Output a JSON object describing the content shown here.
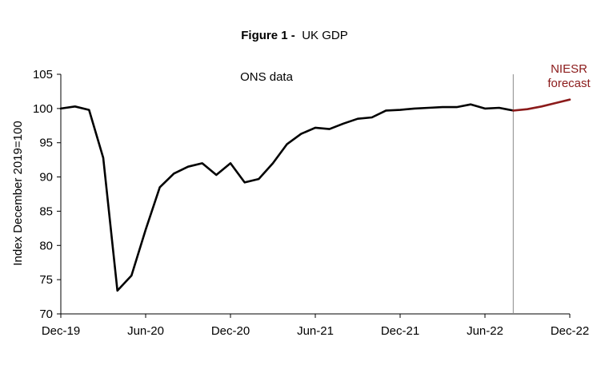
{
  "chart_data": {
    "type": "line",
    "title_prefix": "Figure 1 -",
    "title_main": "UK GDP",
    "ylabel": "Index December 2019=100",
    "xlabel": "",
    "ylim": [
      70,
      105
    ],
    "yticks": [
      70,
      75,
      80,
      85,
      90,
      95,
      100,
      105
    ],
    "x_month_range": [
      0,
      36
    ],
    "xticks": [
      {
        "month": 0,
        "label": "Dec-19"
      },
      {
        "month": 6,
        "label": "Jun-20"
      },
      {
        "month": 12,
        "label": "Dec-20"
      },
      {
        "month": 18,
        "label": "Jun-21"
      },
      {
        "month": 24,
        "label": "Dec-21"
      },
      {
        "month": 30,
        "label": "Jun-22"
      },
      {
        "month": 36,
        "label": "Dec-22"
      }
    ],
    "divider_month": 32,
    "series": [
      {
        "name": "ONS data",
        "color": "#000000",
        "months": [
          0,
          1,
          2,
          3,
          4,
          5,
          6,
          7,
          8,
          9,
          10,
          11,
          12,
          13,
          14,
          15,
          16,
          17,
          18,
          19,
          20,
          21,
          22,
          23,
          24,
          25,
          26,
          27,
          28,
          29,
          30,
          31,
          32
        ],
        "values": [
          100.0,
          100.3,
          99.8,
          92.8,
          73.4,
          75.6,
          82.3,
          88.5,
          90.5,
          91.5,
          92.0,
          90.3,
          92.0,
          89.2,
          89.7,
          92.0,
          94.8,
          96.3,
          97.2,
          97.0,
          97.8,
          98.5,
          98.7,
          99.7,
          99.8,
          100.0,
          100.1,
          100.2,
          100.2,
          100.6,
          100.0,
          100.1,
          99.7
        ]
      },
      {
        "name": "NIESR forecast",
        "color": "#8b1a1a",
        "months": [
          32,
          33,
          34,
          35,
          36
        ],
        "values": [
          99.7,
          99.9,
          100.3,
          100.8,
          101.3
        ]
      }
    ],
    "annotations": {
      "ons_label": "ONS data",
      "niesr_label_line1": "NIESR",
      "niesr_label_line2": "forecast",
      "niesr_color": "#8b1a1a"
    }
  }
}
